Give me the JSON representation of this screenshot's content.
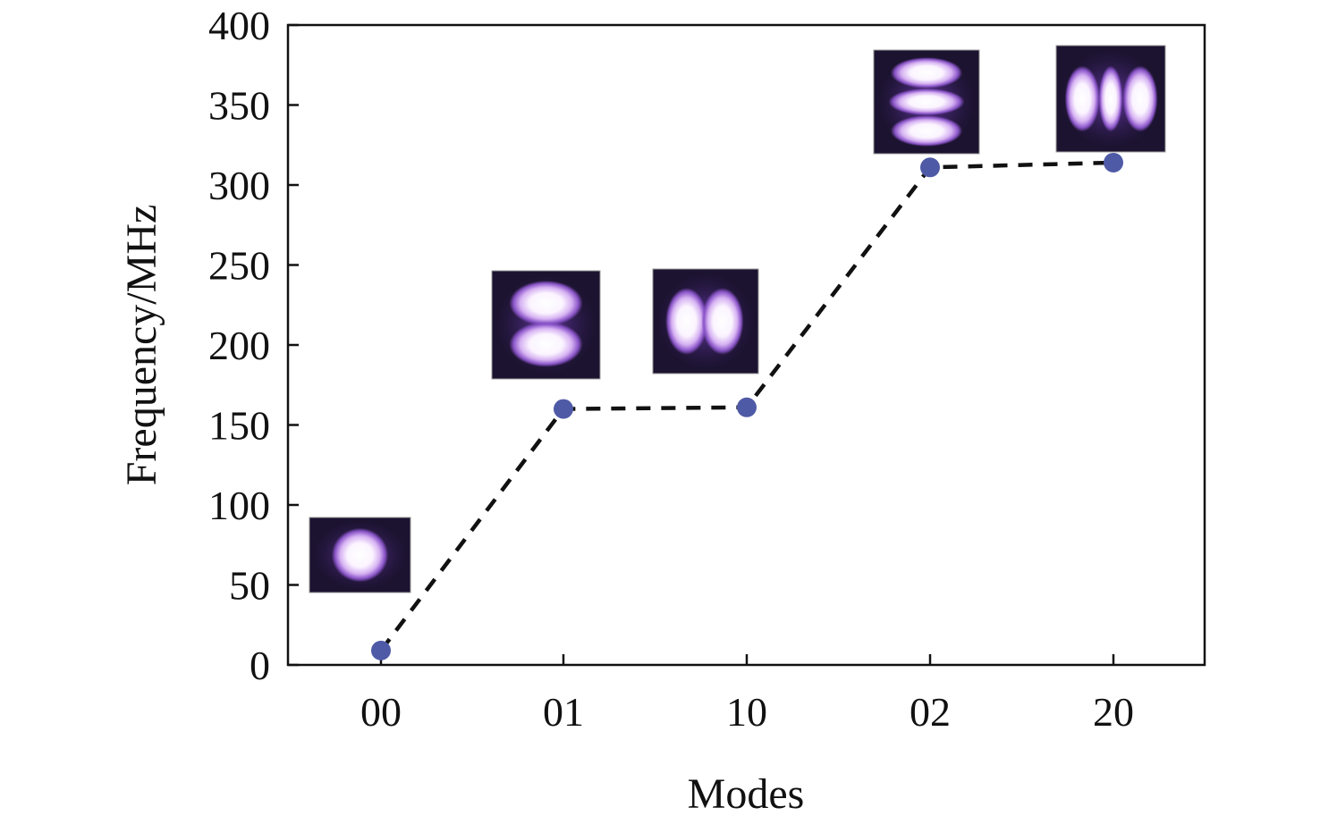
{
  "chart_data": {
    "type": "line",
    "title": "",
    "xlabel": "Modes",
    "ylabel": "Frequency/MHz",
    "categories": [
      "00",
      "01",
      "10",
      "02",
      "20"
    ],
    "values": [
      9,
      160,
      161,
      311,
      314
    ],
    "ylim": [
      0,
      400
    ],
    "yticks": [
      0,
      50,
      100,
      150,
      200,
      250,
      300,
      350,
      400
    ],
    "ytick_labels": [
      "0",
      "50",
      "100",
      "150",
      "200",
      "250",
      "300",
      "350",
      "400"
    ],
    "grid": false,
    "line_style": "dashed",
    "line_color": "#111111",
    "marker_color": "#4f5aa6",
    "mode_images": [
      {
        "mode": "00",
        "pattern": "single-lobe"
      },
      {
        "mode": "01",
        "pattern": "two-lobes-vertical"
      },
      {
        "mode": "10",
        "pattern": "two-lobes-horizontal"
      },
      {
        "mode": "02",
        "pattern": "three-lobes-vertical"
      },
      {
        "mode": "20",
        "pattern": "three-lobes-horizontal"
      }
    ]
  }
}
